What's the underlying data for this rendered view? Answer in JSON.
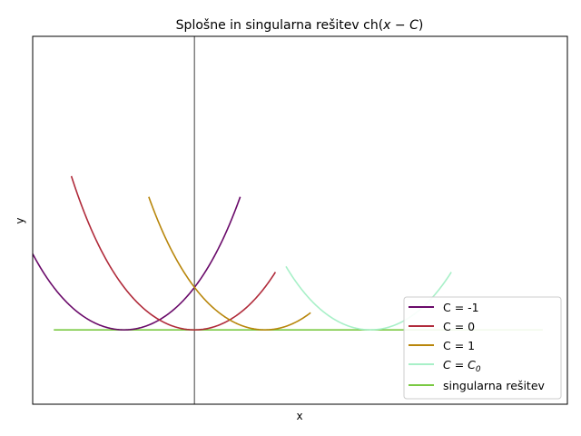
{
  "chart_data": {
    "type": "line",
    "title_prefix": "Splošne in singularna rešitev ch(",
    "title_math": "x − C",
    "title_suffix": ")",
    "xlabel": "x",
    "ylabel": "y",
    "xlim": [
      -2.3,
      5.3
    ],
    "ylim": [
      -0.95,
      3.75
    ],
    "axvline_x": 0,
    "series": [
      {
        "name": "C = -1",
        "C": -1,
        "color": "#6a0a6a",
        "x_range": [
          -2.3,
          0.65
        ]
      },
      {
        "name": "C = 0",
        "C": 0,
        "color": "#b02a3a",
        "x_range": [
          -1.75,
          1.15
        ]
      },
      {
        "name": "C = 1",
        "C": 1,
        "color": "#b8860b",
        "x_range": [
          -0.65,
          1.65
        ]
      },
      {
        "name_prefix": "C = C",
        "name_sub": "0",
        "C": 2.5,
        "color": "#a8f0c8",
        "x_range": [
          1.3,
          3.65
        ]
      }
    ],
    "singular": {
      "name": "singularna rešitev",
      "y": 0,
      "x_range": [
        -2.0,
        4.95
      ],
      "color": "#7ac943"
    },
    "legend": {
      "placement": "lower-right"
    }
  }
}
